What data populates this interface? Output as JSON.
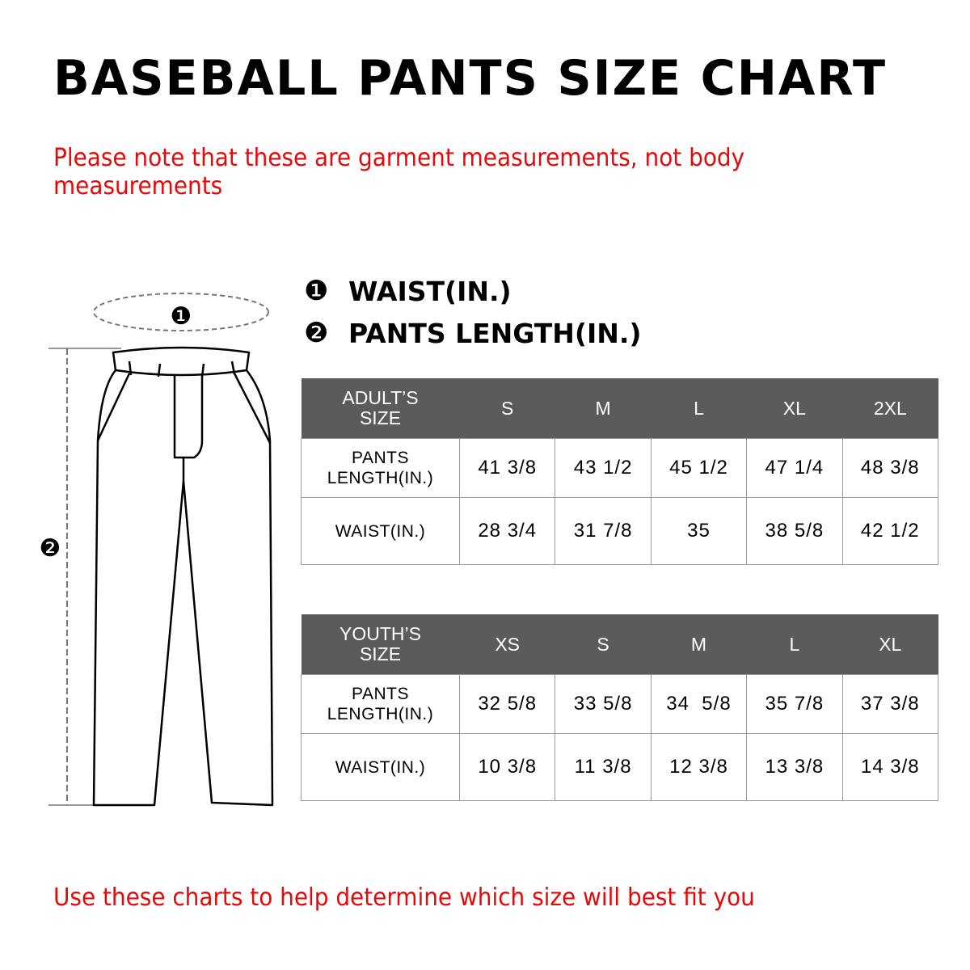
{
  "title": "BASEBALL PANTS SIZE CHART",
  "note": "Please note that these are garment measurements, not body measurements",
  "legend": [
    {
      "marker": "❶",
      "label": "WAIST(IN.)"
    },
    {
      "marker": "❷",
      "label": "PANTS LENGTH(IN.)"
    }
  ],
  "illustration": {
    "marker_waist": "❶",
    "marker_length": "❷"
  },
  "adult_table": {
    "header": [
      "ADULT’S SIZE",
      "S",
      "M",
      "L",
      "XL",
      "2XL"
    ],
    "rows": [
      [
        "PANTS LENGTH(IN.)",
        "41 3/8",
        "43 1/2",
        "45 1/2",
        "47 1/4",
        "48 3/8"
      ],
      [
        "WAIST(IN.)",
        "28 3/4",
        "31 7/8",
        "35",
        "38 5/8",
        "42 1/2"
      ]
    ]
  },
  "youth_table": {
    "header": [
      "YOUTH’S SIZE",
      "XS",
      "S",
      "M",
      "L",
      "XL"
    ],
    "rows": [
      [
        "PANTS LENGTH(IN.)",
        "32 5/8",
        "33 5/8",
        "34  5/8",
        "35 7/8",
        "37 3/8"
      ],
      [
        "WAIST(IN.)",
        "10 3/8",
        "11 3/8",
        "12 3/8",
        "13 3/8",
        "14 3/8"
      ]
    ]
  },
  "footer": "Use these charts to help determine which size will best fit you",
  "colors": {
    "accent_red": "#e8080a",
    "header_gray": "#5b5b5b",
    "border_gray": "#999999"
  }
}
